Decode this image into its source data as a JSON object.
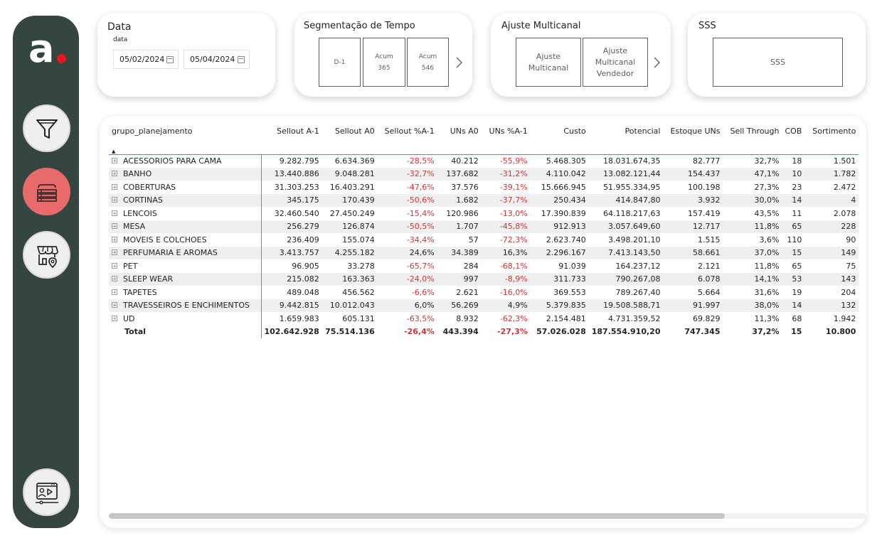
{
  "logo": {
    "letter": "a"
  },
  "sidebar": [
    {
      "name": "filter-icon",
      "active": false
    },
    {
      "name": "bed-linen-icon",
      "active": true
    },
    {
      "name": "store-location-icon",
      "active": false
    },
    {
      "name": "video-presentation-icon",
      "active": false
    }
  ],
  "filters": {
    "data": {
      "title": "Data",
      "sublabel": "data",
      "start": "05/02/2024",
      "end": "05/04/2024"
    },
    "segmentacao": {
      "title": "Segmentação de Tempo",
      "tiles": [
        "D-1",
        "Acum\n365",
        "Acum\n546"
      ]
    },
    "multicanal": {
      "title": "Ajuste Multicanal",
      "tiles": [
        "Ajuste\nMulticanal",
        "Ajuste\nMulticanal\nVendedor"
      ]
    },
    "sss": {
      "title": "SSS",
      "tile": "SSS"
    }
  },
  "table": {
    "columns": [
      "grupo_planejamento",
      "Sellout A-1",
      "Sellout A0",
      "Sellout %A-1",
      "UNs A0",
      "UNs %A-1",
      "Custo",
      "Potencial",
      "Estoque UNs",
      "Sell Through",
      "COB",
      "Sortimento"
    ],
    "rows": [
      [
        "ACESSORIOS PARA CAMA",
        "9.282.795",
        "6.634.369",
        "-28,5%",
        "40.212",
        "-55,9%",
        "5.468.305",
        "18.031.674,35",
        "82.777",
        "32,7%",
        "18",
        "1.501"
      ],
      [
        "BANHO",
        "13.440.886",
        "9.048.281",
        "-32,7%",
        "137.682",
        "-31,2%",
        "4.110.042",
        "13.082.121,44",
        "154.437",
        "47,1%",
        "10",
        "1.782"
      ],
      [
        "COBERTURAS",
        "31.303.253",
        "16.403.291",
        "-47,6%",
        "37.576",
        "-39,1%",
        "15.666.945",
        "51.955.334,95",
        "100.198",
        "27,3%",
        "23",
        "2.472"
      ],
      [
        "CORTINAS",
        "345.175",
        "170.439",
        "-50,6%",
        "1.682",
        "-37,7%",
        "250.434",
        "414.847,80",
        "3.932",
        "30,0%",
        "14",
        "4"
      ],
      [
        "LENCOIS",
        "32.460.540",
        "27.450.249",
        "-15,4%",
        "120.986",
        "-13,0%",
        "17.390.839",
        "64.118.217,63",
        "157.419",
        "43,5%",
        "11",
        "2.078"
      ],
      [
        "MESA",
        "256.279",
        "126.874",
        "-50,5%",
        "1.707",
        "-45,8%",
        "912.913",
        "3.057.649,60",
        "12.717",
        "11,8%",
        "65",
        "228"
      ],
      [
        "MOVEIS E COLCHOES",
        "236.409",
        "155.074",
        "-34,4%",
        "57",
        "-72,3%",
        "2.623.740",
        "3.498.201,10",
        "1.515",
        "3,6%",
        "110",
        "90"
      ],
      [
        "PERFUMARIA E AROMAS",
        "3.413.757",
        "4.255.182",
        "24,6%",
        "34.389",
        "16,3%",
        "2.296.167",
        "7.413.143,50",
        "58.661",
        "37,0%",
        "15",
        "149"
      ],
      [
        "PET",
        "96.905",
        "33.278",
        "-65,7%",
        "284",
        "-68,1%",
        "91.039",
        "164.237,12",
        "2.121",
        "11,8%",
        "65",
        "75"
      ],
      [
        "SLEEP WEAR",
        "215.082",
        "163.363",
        "-24,0%",
        "997",
        "-8,9%",
        "311.733",
        "790.267,08",
        "6.078",
        "14,1%",
        "53",
        "143"
      ],
      [
        "TAPETES",
        "489.048",
        "456.562",
        "-6,6%",
        "2.621",
        "-16,0%",
        "369.553",
        "789.267,40",
        "5.664",
        "31,6%",
        "19",
        "204"
      ],
      [
        "TRAVESSEIROS E ENCHIMENTOS",
        "9.442.815",
        "10.012.043",
        "6,0%",
        "56.269",
        "4,9%",
        "5.379.835",
        "19.508.588,71",
        "91.997",
        "38,0%",
        "14",
        "132"
      ],
      [
        "UD",
        "1.659.983",
        "605.131",
        "-63,5%",
        "8.932",
        "-62,3%",
        "2.154.481",
        "4.731.359,52",
        "69.829",
        "11,3%",
        "68",
        "1.942"
      ]
    ],
    "total": [
      "Total",
      "102.642.928",
      "75.514.136",
      "-26,4%",
      "443.394",
      "-27,3%",
      "57.026.028",
      "187.554.910,20",
      "747.345",
      "37,2%",
      "15",
      "10.800"
    ]
  },
  "scroll": {
    "horizontal_fraction_visible": 0.81
  },
  "colors": {
    "sidebar": "#344542",
    "accent_red": "#e8141e",
    "active_button": "#e86a6a",
    "negative": "#d13438",
    "grid_line": "#3c9bd6"
  }
}
